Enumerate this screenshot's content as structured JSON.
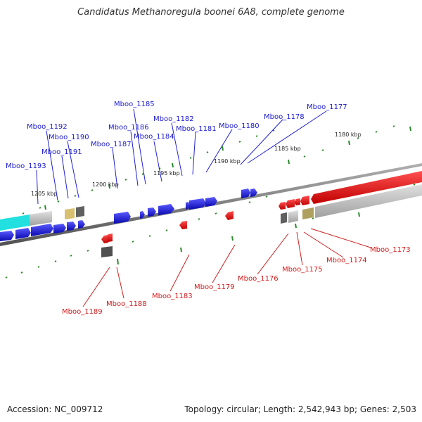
{
  "title": "Candidatus Methanoregula boonei 6A8, complete genome",
  "footer": {
    "accession": "Accession: NC_009712",
    "topology": "Topology: circular; Length: 2,542,943 bp; Genes: 2,503"
  },
  "colors": {
    "forward_gene": "#1a1ad6",
    "reverse_gene": "#e01010",
    "backbone": "#808080",
    "tick": "#2a8a2a",
    "forward_label": "#1a1ad0",
    "reverse_label": "#d01a1a"
  },
  "kbp_labels": [
    "1180 kbp",
    "1185 kbp",
    "1190 kbp",
    "1195 kbp",
    "1200 kbp",
    "1205 kbp"
  ],
  "forward_genes": [
    "Mboo_1177",
    "Mboo_1178",
    "Mboo_1180",
    "Mboo_1181",
    "Mboo_1182",
    "Mboo_1184",
    "Mboo_1185",
    "Mboo_1186",
    "Mboo_1187",
    "Mboo_1190",
    "Mboo_1191",
    "Mboo_1192",
    "Mboo_1193"
  ],
  "reverse_genes": [
    "Mboo_1173",
    "Mboo_1174",
    "Mboo_1175",
    "Mboo_1176",
    "Mboo_1179",
    "Mboo_1183",
    "Mboo_1188",
    "Mboo_1189"
  ]
}
